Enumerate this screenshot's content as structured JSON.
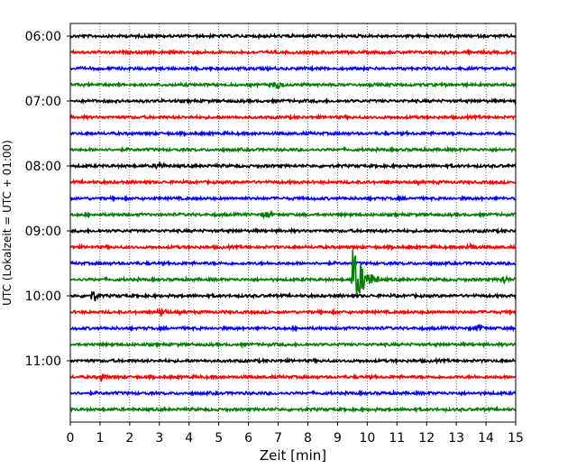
{
  "chart_data": {
    "type": "line",
    "title": "",
    "xlabel": "Zeit  [min]",
    "ylabel": "UTC (Lokalzeit = UTC + 01:00)",
    "xlim": [
      0,
      15
    ],
    "x_ticks": [
      "0",
      "1",
      "2",
      "3",
      "4",
      "5",
      "6",
      "7",
      "8",
      "9",
      "10",
      "11",
      "12",
      "13",
      "14",
      "15"
    ],
    "y_tick_labels": [
      "06:00",
      "07:00",
      "08:00",
      "09:00",
      "10:00",
      "11:00"
    ],
    "trace_interval_min": 15,
    "start_time": "06:00",
    "trace_count": 24,
    "trace_colors": [
      "#000000",
      "#ff0000",
      "#0000ff",
      "#008000"
    ],
    "grid": "vertical dotted",
    "events": [
      {
        "trace": 3,
        "x": 7.0,
        "amp": 0.45
      },
      {
        "trace": 8,
        "x": 3.0,
        "amp": 0.35
      },
      {
        "trace": 11,
        "x": 6.6,
        "amp": 0.35
      },
      {
        "trace": 13,
        "x": 13.5,
        "amp": 0.3
      },
      {
        "trace": 15,
        "x": 14.6,
        "amp": 0.4
      },
      {
        "trace": 16,
        "x": 0.8,
        "amp": 0.6
      },
      {
        "trace": 17,
        "x": 3.1,
        "amp": 0.4
      },
      {
        "trace": 18,
        "x": 13.8,
        "amp": 0.35
      },
      {
        "trace": 21,
        "x": 1.1,
        "amp": 0.3
      },
      {
        "trace": 15,
        "x": 9.5,
        "amp": 3.5,
        "quake": true
      }
    ]
  }
}
